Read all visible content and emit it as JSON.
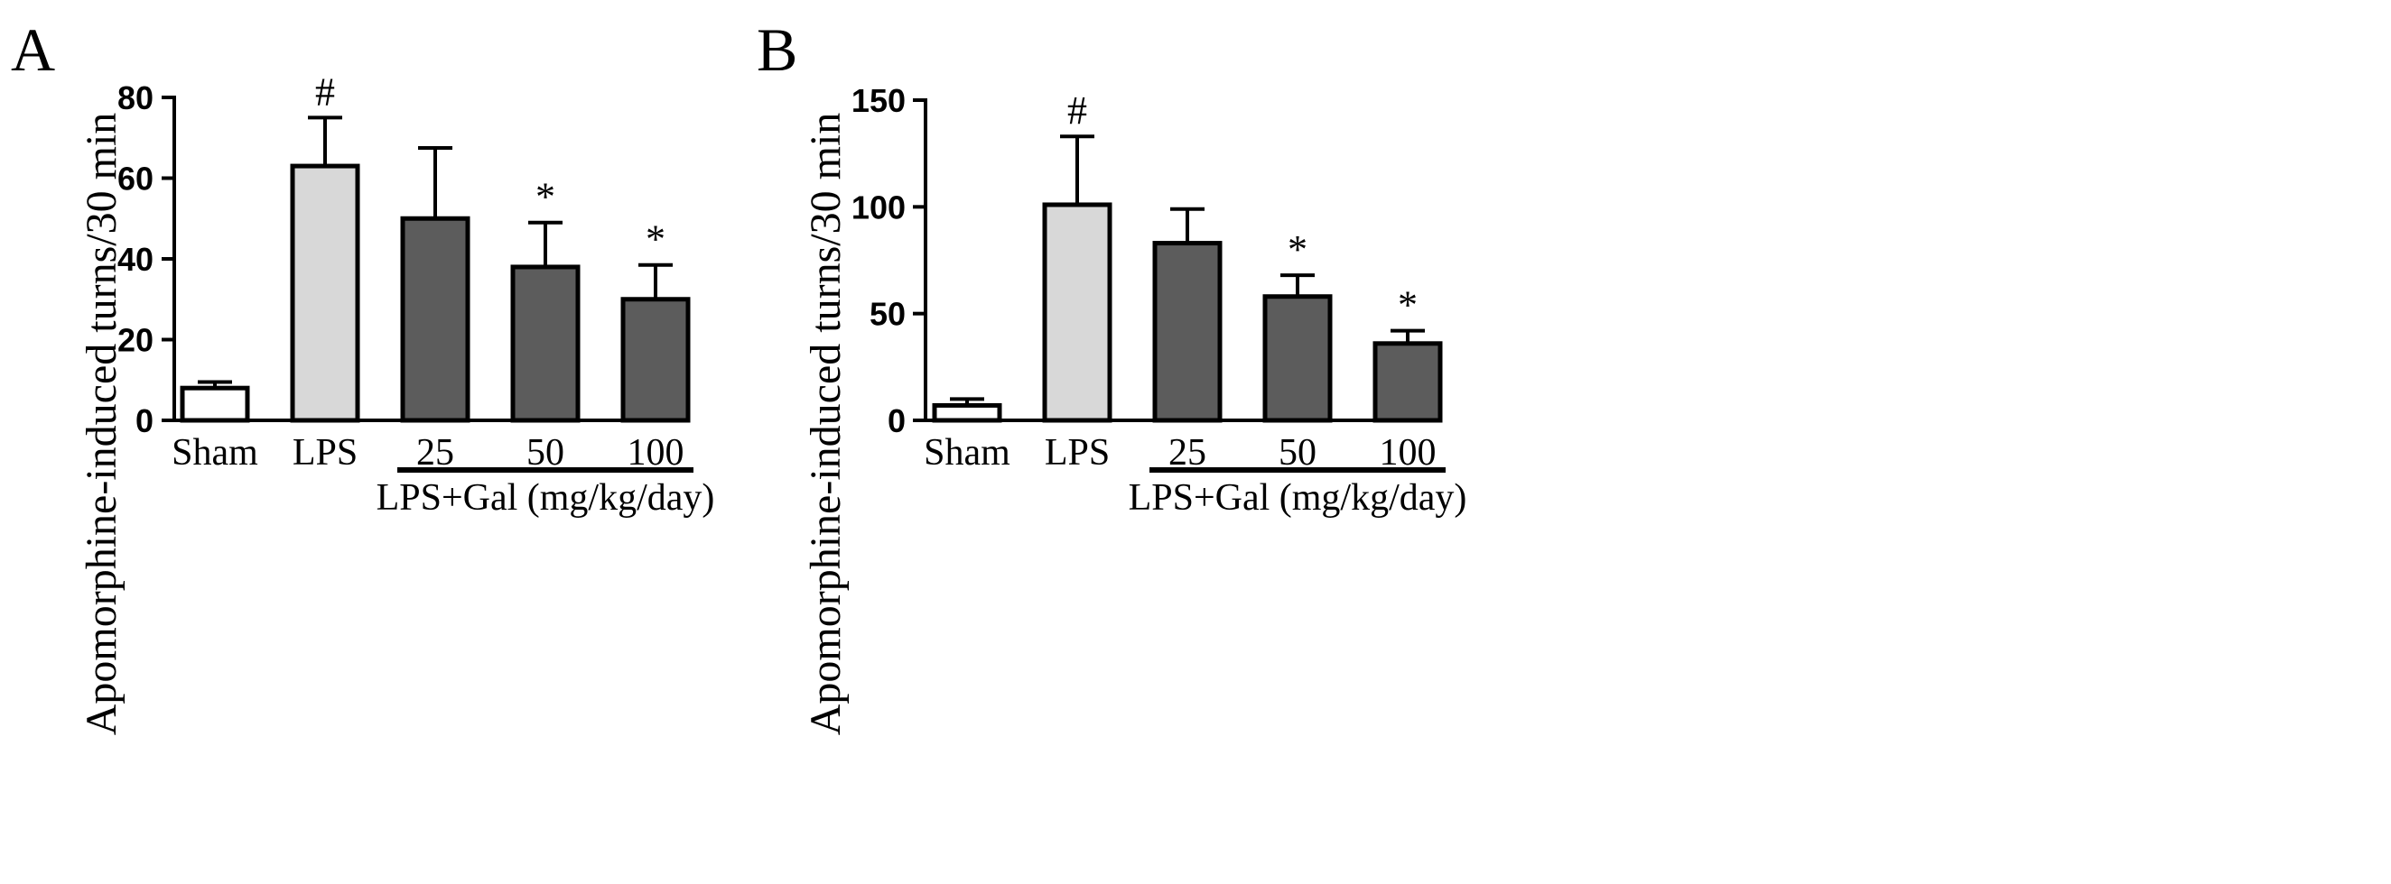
{
  "chart_data": [
    {
      "type": "bar",
      "panel_label": "A",
      "ylabel": "Apomorphine-induced turns/30 min",
      "xlabel": "",
      "ylim": [
        0,
        80
      ],
      "yticks": [
        0,
        20,
        40,
        60,
        80
      ],
      "categories": [
        "Sham",
        "LPS",
        "25",
        "50",
        "100"
      ],
      "values": [
        8,
        63,
        50,
        38,
        30
      ],
      "errors": [
        1.5,
        12,
        17.5,
        11,
        8.5
      ],
      "bar_colors": [
        "#ffffff",
        "#d8d8d8",
        "#5c5c5c",
        "#5c5c5c",
        "#5c5c5c"
      ],
      "significance": [
        "",
        "#",
        "",
        "*",
        "*"
      ],
      "group_label": "LPS+Gal (mg/kg/day)",
      "group_start": 2,
      "group_end": 4
    },
    {
      "type": "bar",
      "panel_label": "B",
      "ylabel": "Apomorphine-induced turns/30 min",
      "xlabel": "",
      "ylim": [
        0,
        150
      ],
      "yticks": [
        0,
        50,
        100,
        150
      ],
      "categories": [
        "Sham",
        "LPS",
        "25",
        "50",
        "100"
      ],
      "values": [
        7,
        101,
        83,
        58,
        36
      ],
      "errors": [
        3,
        32,
        16,
        10,
        6
      ],
      "bar_colors": [
        "#ffffff",
        "#d8d8d8",
        "#5c5c5c",
        "#5c5c5c",
        "#5c5c5c"
      ],
      "significance": [
        "",
        "#",
        "",
        "*",
        "*"
      ],
      "group_label": "LPS+Gal (mg/kg/day)",
      "group_start": 2,
      "group_end": 4
    }
  ]
}
